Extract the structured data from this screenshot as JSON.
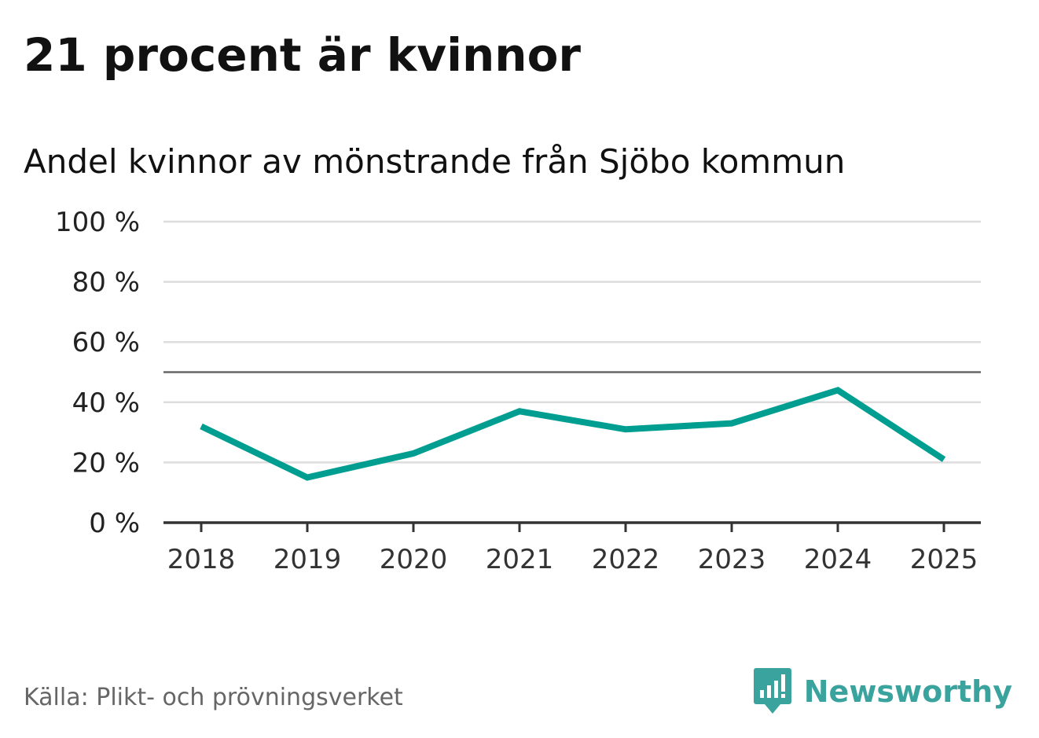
{
  "header": {
    "title": "21 procent är kvinnor",
    "subtitle": "Andel kvinnor av mönstrande från Sjöbo kommun"
  },
  "footer": {
    "source": "Källa: Plikt- och prövningsverket",
    "brand": "Newsworthy",
    "brand_icon": "newsworthy-logo-icon"
  },
  "chart_data": {
    "type": "line",
    "title": "21 procent är kvinnor",
    "subtitle": "Andel kvinnor av mönstrande från Sjöbo kommun",
    "x": [
      "2018",
      "2019",
      "2020",
      "2021",
      "2022",
      "2023",
      "2024",
      "2025"
    ],
    "series": [
      {
        "values": [
          32,
          15,
          23,
          37,
          31,
          33,
          44,
          21
        ]
      }
    ],
    "ylim": [
      0,
      100
    ],
    "yticks": [
      0,
      20,
      40,
      60,
      80,
      100
    ],
    "ytick_labels": [
      "0 %",
      "20 %",
      "40 %",
      "60 %",
      "80 %",
      "100 %"
    ],
    "reference_line": 50,
    "grid": true,
    "colors": {
      "line": "#009e91",
      "grid": "#dddddd",
      "reference": "#666666",
      "axis": "#333333"
    }
  }
}
